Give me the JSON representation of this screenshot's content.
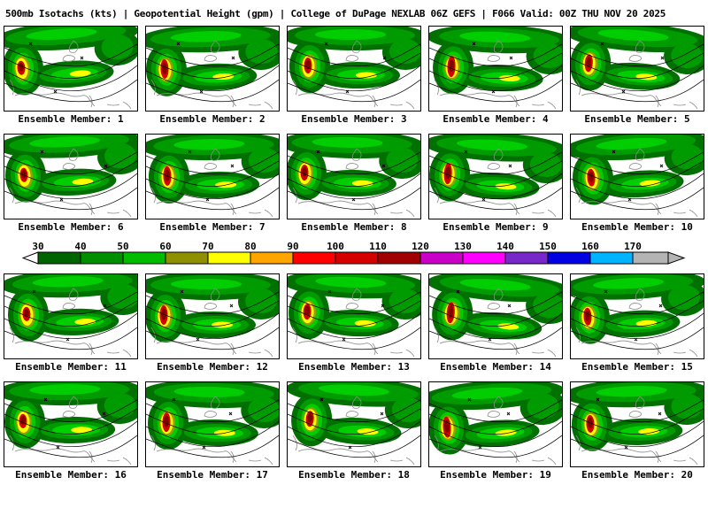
{
  "header": {
    "title": "500mb Isotachs (kts) | Geopotential Height (gpm) | College of DuPage NEXLAB   06Z GEFS | F066 Valid: 00Z THU NOV 20 2025"
  },
  "panels": [
    {
      "label": "Ensemble Member: 1"
    },
    {
      "label": "Ensemble Member: 2"
    },
    {
      "label": "Ensemble Member: 3"
    },
    {
      "label": "Ensemble Member: 4"
    },
    {
      "label": "Ensemble Member: 5"
    },
    {
      "label": "Ensemble Member: 6"
    },
    {
      "label": "Ensemble Member: 7"
    },
    {
      "label": "Ensemble Member: 8"
    },
    {
      "label": "Ensemble Member: 9"
    },
    {
      "label": "Ensemble Member: 10"
    },
    {
      "label": "Ensemble Member: 11"
    },
    {
      "label": "Ensemble Member: 12"
    },
    {
      "label": "Ensemble Member: 13"
    },
    {
      "label": "Ensemble Member: 14"
    },
    {
      "label": "Ensemble Member: 15"
    },
    {
      "label": "Ensemble Member: 16"
    },
    {
      "label": "Ensemble Member: 17"
    },
    {
      "label": "Ensemble Member: 18"
    },
    {
      "label": "Ensemble Member: 19"
    },
    {
      "label": "Ensemble Member: 20"
    }
  ],
  "chart_data": {
    "type": "map-ensemble",
    "variable": "500mb Isotachs (kts)",
    "overlay": "Geopotential Height (gpm)",
    "source": "College of DuPage NEXLAB",
    "model": "GEFS",
    "cycle": "06Z",
    "forecast_hour": "F066",
    "valid_time": "00Z THU NOV 20 2025",
    "member_count": 20,
    "colorbar": {
      "units": "kts",
      "ticks": [
        30,
        40,
        50,
        60,
        70,
        80,
        90,
        100,
        110,
        120,
        130,
        140,
        150,
        160,
        170
      ],
      "colors": [
        "#006400",
        "#008F00",
        "#00BB00",
        "#8F8F00",
        "#FFFF00",
        "#FFA500",
        "#FF0000",
        "#D40000",
        "#A00000",
        "#C800C8",
        "#FF00FF",
        "#7828C8",
        "#0000E0",
        "#00B4FF"
      ],
      "left_arrow_color": "#FFFFFF",
      "right_arrow_color": "#B4B4B4"
    }
  },
  "map_colors": {
    "green_dark": "#007000",
    "green_mid": "#009B00",
    "green_bright": "#00CE00",
    "olive": "#9A9A00",
    "yellow": "#FFFF00",
    "red": "#D40000",
    "dark_red": "#800000",
    "contour": "#000000",
    "coast": "#8C8C8C"
  }
}
